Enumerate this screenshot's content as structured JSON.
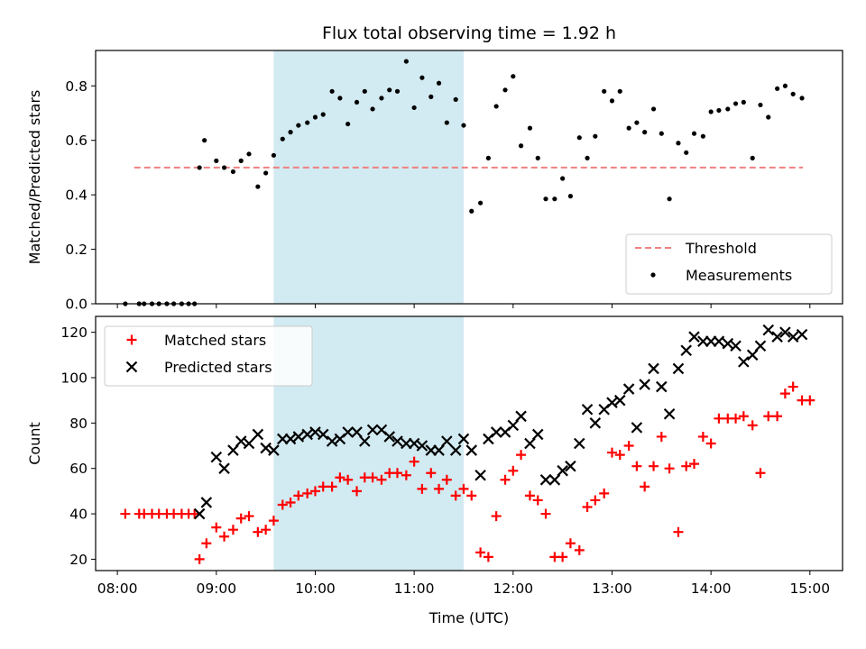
{
  "chart_data": [
    {
      "type": "scatter",
      "title": "Flux total observing time = 1.92 h",
      "xlabel": "",
      "ylabel": "Matched/Predicted stars",
      "ylim": [
        0.0,
        0.93
      ],
      "yticks": [
        0.0,
        0.2,
        0.4,
        0.6,
        0.8
      ],
      "yticklabels": [
        "0.0",
        "0.2",
        "0.4",
        "0.6",
        "0.8"
      ],
      "xlim_hours": [
        7.78,
        15.33
      ],
      "shaded_interval_hours": [
        9.58,
        11.5
      ],
      "shaded_color": "#add8e6",
      "threshold": {
        "name": "Threshold",
        "value": 0.5,
        "x_start": 8.17,
        "x_end": 14.93,
        "color": "#f08080"
      },
      "legend": {
        "location": "lower right",
        "entries": [
          "Threshold",
          "Measurements"
        ]
      },
      "series": [
        {
          "name": "Measurements",
          "color": "#000000",
          "marker": "dot",
          "points": [
            [
              8.08,
              0.0
            ],
            [
              8.22,
              0.0
            ],
            [
              8.27,
              0.0
            ],
            [
              8.35,
              0.0
            ],
            [
              8.42,
              0.0
            ],
            [
              8.5,
              0.0
            ],
            [
              8.57,
              0.0
            ],
            [
              8.65,
              0.0
            ],
            [
              8.72,
              0.0
            ],
            [
              8.78,
              0.0
            ],
            [
              8.83,
              0.5
            ],
            [
              8.88,
              0.6
            ],
            [
              9.0,
              0.525
            ],
            [
              9.08,
              0.5
            ],
            [
              9.17,
              0.485
            ],
            [
              9.25,
              0.525
            ],
            [
              9.33,
              0.55
            ],
            [
              9.42,
              0.43
            ],
            [
              9.5,
              0.48
            ],
            [
              9.58,
              0.545
            ],
            [
              9.67,
              0.605
            ],
            [
              9.75,
              0.63
            ],
            [
              9.83,
              0.655
            ],
            [
              9.92,
              0.665
            ],
            [
              10.0,
              0.685
            ],
            [
              10.08,
              0.695
            ],
            [
              10.17,
              0.78
            ],
            [
              10.25,
              0.755
            ],
            [
              10.33,
              0.66
            ],
            [
              10.42,
              0.74
            ],
            [
              10.5,
              0.78
            ],
            [
              10.58,
              0.715
            ],
            [
              10.67,
              0.755
            ],
            [
              10.75,
              0.785
            ],
            [
              10.83,
              0.78
            ],
            [
              10.92,
              0.89
            ],
            [
              11.0,
              0.72
            ],
            [
              11.08,
              0.83
            ],
            [
              11.17,
              0.76
            ],
            [
              11.25,
              0.81
            ],
            [
              11.33,
              0.665
            ],
            [
              11.42,
              0.75
            ],
            [
              11.5,
              0.655
            ],
            [
              11.58,
              0.34
            ],
            [
              11.67,
              0.37
            ],
            [
              11.75,
              0.535
            ],
            [
              11.83,
              0.725
            ],
            [
              11.92,
              0.785
            ],
            [
              12.0,
              0.835
            ],
            [
              12.08,
              0.58
            ],
            [
              12.17,
              0.645
            ],
            [
              12.25,
              0.535
            ],
            [
              12.33,
              0.385
            ],
            [
              12.42,
              0.385
            ],
            [
              12.5,
              0.46
            ],
            [
              12.58,
              0.395
            ],
            [
              12.67,
              0.61
            ],
            [
              12.75,
              0.535
            ],
            [
              12.83,
              0.615
            ],
            [
              12.92,
              0.78
            ],
            [
              13.0,
              0.745
            ],
            [
              13.08,
              0.78
            ],
            [
              13.17,
              0.645
            ],
            [
              13.25,
              0.665
            ],
            [
              13.33,
              0.63
            ],
            [
              13.42,
              0.715
            ],
            [
              13.5,
              0.625
            ],
            [
              13.58,
              0.385
            ],
            [
              13.67,
              0.59
            ],
            [
              13.75,
              0.555
            ],
            [
              13.83,
              0.625
            ],
            [
              13.92,
              0.615
            ],
            [
              14.0,
              0.705
            ],
            [
              14.08,
              0.71
            ],
            [
              14.17,
              0.715
            ],
            [
              14.25,
              0.735
            ],
            [
              14.33,
              0.74
            ],
            [
              14.42,
              0.535
            ],
            [
              14.5,
              0.73
            ],
            [
              14.58,
              0.685
            ],
            [
              14.67,
              0.79
            ],
            [
              14.75,
              0.8
            ],
            [
              14.83,
              0.77
            ],
            [
              14.92,
              0.755
            ]
          ]
        }
      ]
    },
    {
      "type": "scatter",
      "title": "",
      "xlabel": "Time (UTC)",
      "ylabel": "Count",
      "ylim": [
        15,
        127
      ],
      "yticks": [
        20,
        40,
        60,
        80,
        100,
        120
      ],
      "yticklabels": [
        "20",
        "40",
        "60",
        "80",
        "100",
        "120"
      ],
      "xticks_hours": [
        8,
        9,
        10,
        11,
        12,
        13,
        14,
        15
      ],
      "xticklabels": [
        "08:00",
        "09:00",
        "10:00",
        "11:00",
        "12:00",
        "13:00",
        "14:00",
        "15:00"
      ],
      "xlim_hours": [
        7.78,
        15.33
      ],
      "shaded_interval_hours": [
        9.58,
        11.5
      ],
      "shaded_color": "#add8e6",
      "legend": {
        "location": "upper left",
        "entries": [
          "Matched stars",
          "Predicted stars"
        ]
      },
      "series": [
        {
          "name": "Matched stars",
          "color": "#ff0000",
          "marker": "plus",
          "points": [
            [
              8.08,
              40
            ],
            [
              8.22,
              40
            ],
            [
              8.27,
              40
            ],
            [
              8.35,
              40
            ],
            [
              8.42,
              40
            ],
            [
              8.5,
              40
            ],
            [
              8.57,
              40
            ],
            [
              8.65,
              40
            ],
            [
              8.72,
              40
            ],
            [
              8.78,
              40
            ],
            [
              8.83,
              20
            ],
            [
              8.9,
              27
            ],
            [
              9.0,
              34
            ],
            [
              9.08,
              30
            ],
            [
              9.17,
              33
            ],
            [
              9.25,
              38
            ],
            [
              9.33,
              39
            ],
            [
              9.42,
              32
            ],
            [
              9.5,
              33
            ],
            [
              9.58,
              37
            ],
            [
              9.67,
              44
            ],
            [
              9.75,
              45
            ],
            [
              9.83,
              48
            ],
            [
              9.92,
              49
            ],
            [
              10.0,
              50
            ],
            [
              10.08,
              52
            ],
            [
              10.17,
              52
            ],
            [
              10.25,
              56
            ],
            [
              10.33,
              55
            ],
            [
              10.42,
              50
            ],
            [
              10.5,
              56
            ],
            [
              10.58,
              56
            ],
            [
              10.67,
              55
            ],
            [
              10.75,
              58
            ],
            [
              10.83,
              58
            ],
            [
              10.92,
              57
            ],
            [
              11.0,
              63
            ],
            [
              11.08,
              51
            ],
            [
              11.17,
              58
            ],
            [
              11.25,
              51
            ],
            [
              11.33,
              55
            ],
            [
              11.42,
              48
            ],
            [
              11.5,
              51
            ],
            [
              11.58,
              48
            ],
            [
              11.67,
              23
            ],
            [
              11.75,
              21
            ],
            [
              11.83,
              39
            ],
            [
              11.92,
              55
            ],
            [
              12.0,
              59
            ],
            [
              12.08,
              66
            ],
            [
              12.17,
              48
            ],
            [
              12.25,
              46
            ],
            [
              12.33,
              40
            ],
            [
              12.42,
              21
            ],
            [
              12.5,
              21
            ],
            [
              12.58,
              27
            ],
            [
              12.67,
              24
            ],
            [
              12.75,
              43
            ],
            [
              12.83,
              46
            ],
            [
              12.92,
              49
            ],
            [
              13.0,
              67
            ],
            [
              13.08,
              66
            ],
            [
              13.17,
              70
            ],
            [
              13.25,
              61
            ],
            [
              13.33,
              52
            ],
            [
              13.42,
              61
            ],
            [
              13.5,
              74
            ],
            [
              13.58,
              60
            ],
            [
              13.67,
              32
            ],
            [
              13.75,
              61
            ],
            [
              13.83,
              62
            ],
            [
              13.92,
              74
            ],
            [
              14.0,
              71
            ],
            [
              14.08,
              82
            ],
            [
              14.17,
              82
            ],
            [
              14.25,
              82
            ],
            [
              14.33,
              83
            ],
            [
              14.42,
              79
            ],
            [
              14.5,
              58
            ],
            [
              14.58,
              83
            ],
            [
              14.67,
              83
            ],
            [
              14.75,
              93
            ],
            [
              14.83,
              96
            ],
            [
              14.92,
              90
            ],
            [
              15.0,
              90
            ]
          ]
        },
        {
          "name": "Predicted stars",
          "color": "#000000",
          "marker": "x",
          "points": [
            [
              8.83,
              40
            ],
            [
              8.9,
              45
            ],
            [
              9.0,
              65
            ],
            [
              9.08,
              60
            ],
            [
              9.17,
              68
            ],
            [
              9.25,
              72
            ],
            [
              9.33,
              71
            ],
            [
              9.42,
              75
            ],
            [
              9.5,
              69
            ],
            [
              9.58,
              68
            ],
            [
              9.67,
              73
            ],
            [
              9.75,
              73
            ],
            [
              9.83,
              74
            ],
            [
              9.92,
              75
            ],
            [
              10.0,
              76
            ],
            [
              10.08,
              75
            ],
            [
              10.17,
              72
            ],
            [
              10.25,
              73
            ],
            [
              10.33,
              76
            ],
            [
              10.42,
              76
            ],
            [
              10.5,
              72
            ],
            [
              10.58,
              77
            ],
            [
              10.67,
              77
            ],
            [
              10.75,
              74
            ],
            [
              10.83,
              72
            ],
            [
              10.92,
              71
            ],
            [
              11.0,
              71
            ],
            [
              11.08,
              70
            ],
            [
              11.17,
              68
            ],
            [
              11.25,
              68
            ],
            [
              11.33,
              72
            ],
            [
              11.42,
              68
            ],
            [
              11.5,
              73
            ],
            [
              11.58,
              68
            ],
            [
              11.67,
              57
            ],
            [
              11.75,
              73
            ],
            [
              11.83,
              76
            ],
            [
              11.92,
              76
            ],
            [
              12.0,
              79
            ],
            [
              12.08,
              83
            ],
            [
              12.17,
              71
            ],
            [
              12.25,
              75
            ],
            [
              12.33,
              55
            ],
            [
              12.42,
              55
            ],
            [
              12.5,
              59
            ],
            [
              12.58,
              61
            ],
            [
              12.67,
              71
            ],
            [
              12.75,
              86
            ],
            [
              12.83,
              80
            ],
            [
              12.92,
              86
            ],
            [
              13.0,
              89
            ],
            [
              13.08,
              90
            ],
            [
              13.17,
              95
            ],
            [
              13.25,
              78
            ],
            [
              13.33,
              97
            ],
            [
              13.42,
              104
            ],
            [
              13.5,
              96
            ],
            [
              13.58,
              84
            ],
            [
              13.67,
              104
            ],
            [
              13.75,
              112
            ],
            [
              13.83,
              118
            ],
            [
              13.92,
              116
            ],
            [
              14.0,
              116
            ],
            [
              14.08,
              116
            ],
            [
              14.17,
              115
            ],
            [
              14.25,
              114
            ],
            [
              14.33,
              107
            ],
            [
              14.42,
              110
            ],
            [
              14.5,
              114
            ],
            [
              14.58,
              121
            ],
            [
              14.67,
              118
            ],
            [
              14.75,
              120
            ],
            [
              14.83,
              118
            ],
            [
              14.92,
              119
            ]
          ]
        }
      ]
    }
  ]
}
